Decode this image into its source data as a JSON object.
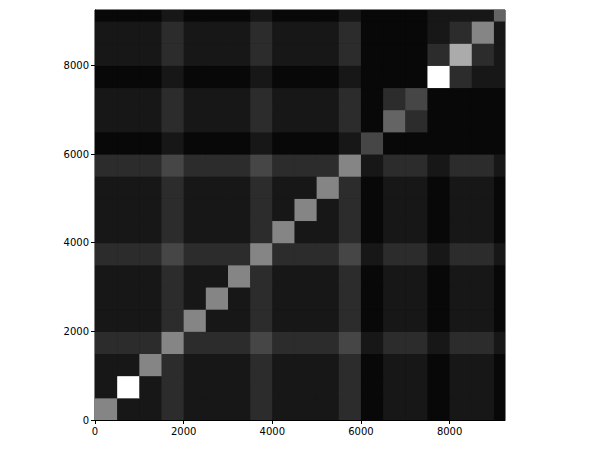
{
  "chart_data": {
    "type": "heatmap",
    "x_edges": [
      0,
      500,
      1000,
      1500,
      2000,
      2500,
      3000,
      3500,
      4000,
      4500,
      5000,
      5500,
      6000,
      6500,
      7000,
      7500,
      8000,
      8500,
      9000,
      9250
    ],
    "y_edges": [
      0,
      500,
      1000,
      1500,
      2000,
      2500,
      3000,
      3500,
      4000,
      4500,
      5000,
      5500,
      6000,
      6500,
      7000,
      7500,
      8000,
      8500,
      9000,
      9250
    ],
    "cells": [
      [
        6,
        2,
        2,
        3,
        2,
        2,
        2,
        3,
        2,
        2,
        2,
        3,
        1,
        2,
        2,
        1,
        2,
        2,
        1
      ],
      [
        2,
        9,
        2,
        3,
        2,
        2,
        2,
        3,
        2,
        2,
        2,
        3,
        1,
        2,
        2,
        1,
        2,
        2,
        1
      ],
      [
        2,
        2,
        6,
        3,
        2,
        2,
        2,
        3,
        2,
        2,
        2,
        3,
        1,
        2,
        2,
        1,
        2,
        2,
        1
      ],
      [
        3,
        3,
        3,
        6,
        3,
        3,
        3,
        4,
        3,
        3,
        3,
        4,
        2,
        3,
        3,
        2,
        3,
        3,
        2
      ],
      [
        2,
        2,
        2,
        3,
        6,
        2,
        2,
        3,
        2,
        2,
        2,
        3,
        1,
        2,
        2,
        1,
        2,
        2,
        1
      ],
      [
        2,
        2,
        2,
        3,
        2,
        6,
        2,
        3,
        2,
        2,
        2,
        3,
        1,
        2,
        2,
        1,
        2,
        2,
        1
      ],
      [
        2,
        2,
        2,
        3,
        2,
        2,
        6,
        3,
        2,
        2,
        2,
        3,
        1,
        2,
        2,
        1,
        2,
        2,
        1
      ],
      [
        3,
        3,
        3,
        4,
        3,
        3,
        3,
        6,
        3,
        3,
        3,
        4,
        2,
        3,
        3,
        2,
        3,
        3,
        2
      ],
      [
        2,
        2,
        2,
        3,
        2,
        2,
        2,
        3,
        6,
        2,
        2,
        3,
        1,
        2,
        2,
        1,
        2,
        2,
        1
      ],
      [
        2,
        2,
        2,
        3,
        2,
        2,
        2,
        3,
        2,
        6,
        2,
        3,
        1,
        2,
        2,
        1,
        2,
        2,
        1
      ],
      [
        2,
        2,
        2,
        3,
        2,
        2,
        2,
        3,
        2,
        2,
        6,
        3,
        1,
        2,
        2,
        1,
        2,
        2,
        1
      ],
      [
        3,
        3,
        3,
        4,
        3,
        3,
        3,
        4,
        3,
        3,
        3,
        6,
        2,
        3,
        3,
        2,
        3,
        3,
        2
      ],
      [
        1,
        1,
        1,
        2,
        1,
        1,
        1,
        2,
        1,
        1,
        1,
        2,
        4,
        1,
        1,
        1,
        1,
        1,
        1
      ],
      [
        2,
        2,
        2,
        3,
        2,
        2,
        2,
        3,
        2,
        2,
        2,
        3,
        1,
        5,
        3,
        1,
        1,
        1,
        1
      ],
      [
        2,
        2,
        2,
        3,
        2,
        2,
        2,
        3,
        2,
        2,
        2,
        3,
        1,
        3,
        4,
        1,
        1,
        1,
        1
      ],
      [
        1,
        1,
        1,
        2,
        1,
        1,
        1,
        2,
        1,
        1,
        1,
        2,
        1,
        1,
        1,
        9,
        3,
        2,
        2
      ],
      [
        2,
        2,
        2,
        3,
        2,
        2,
        2,
        3,
        2,
        2,
        2,
        3,
        1,
        1,
        1,
        3,
        7,
        3,
        2
      ],
      [
        2,
        2,
        2,
        3,
        2,
        2,
        2,
        3,
        2,
        2,
        2,
        3,
        1,
        1,
        1,
        2,
        3,
        6,
        2
      ],
      [
        1,
        1,
        1,
        2,
        1,
        1,
        1,
        2,
        1,
        1,
        1,
        2,
        1,
        1,
        1,
        2,
        2,
        2,
        5
      ]
    ],
    "zlim": [
      0,
      9
    ],
    "color": "#ffffff",
    "xlim": [
      0,
      9250
    ],
    "ylim": [
      0,
      9250
    ],
    "xticks": [
      0,
      2000,
      4000,
      6000,
      8000
    ],
    "yticks": [
      0,
      2000,
      4000,
      6000,
      8000
    ]
  }
}
